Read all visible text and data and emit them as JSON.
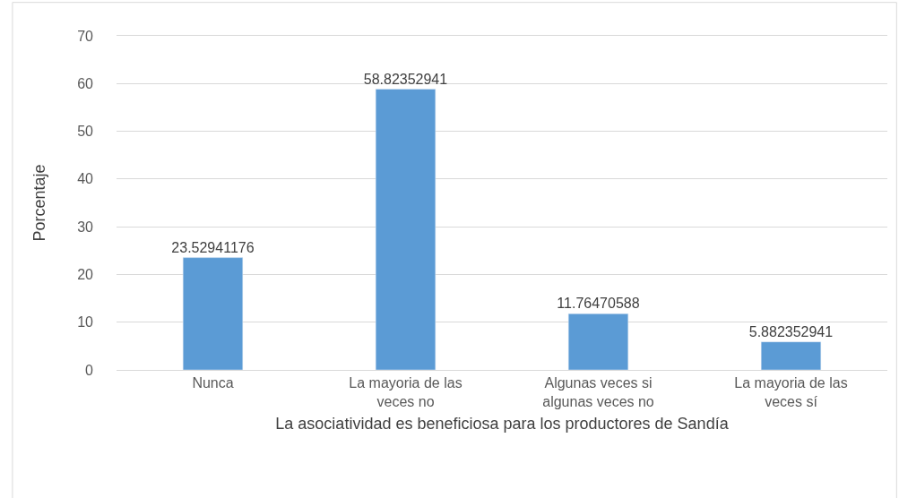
{
  "chart_data": {
    "type": "bar",
    "xlabel": "La asociatividad es beneficiosa para los productores de Sandía",
    "ylabel": "Porcentaje",
    "categories": [
      "Nunca",
      "La mayoria de las veces no",
      "Algunas veces si algunas veces no",
      "La mayoria de las veces sí"
    ],
    "values": [
      23.52941176,
      58.82352941,
      11.76470588,
      5.882352941
    ],
    "color": "#5b9bd5",
    "ylim": [
      0,
      70
    ],
    "yticks": [
      0,
      10,
      20,
      30,
      40,
      50,
      60,
      70
    ],
    "grid": "y",
    "data_labels": true
  }
}
